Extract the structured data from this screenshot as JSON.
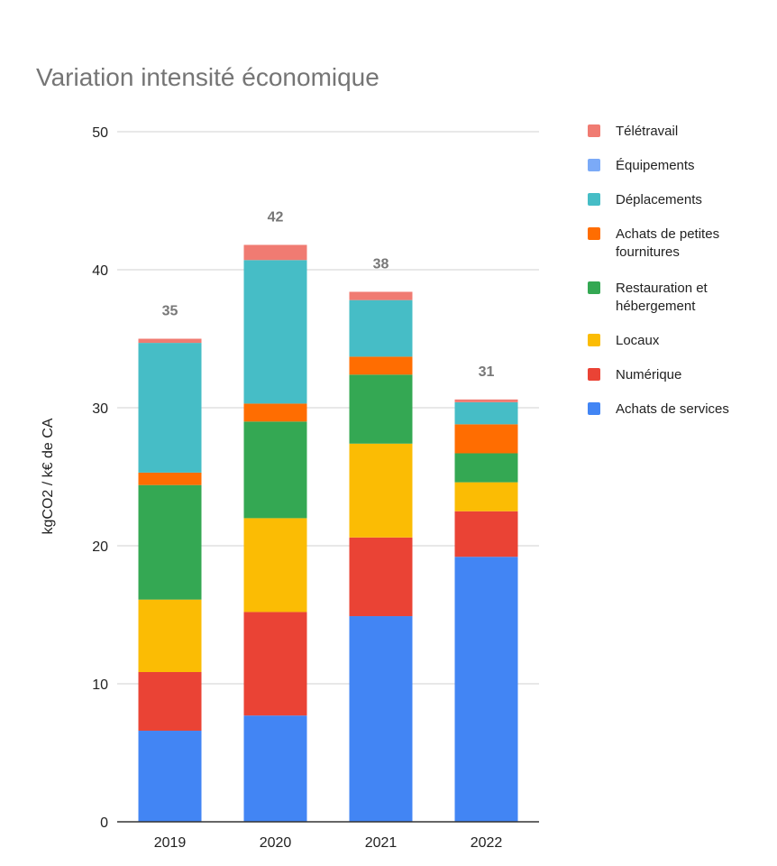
{
  "chart_data": {
    "type": "bar",
    "stacked": true,
    "title": "Variation intensité économique",
    "xlabel": "",
    "ylabel": "kgCO2 / k€ de CA",
    "ylim": [
      0,
      50
    ],
    "yticks": [
      0,
      10,
      20,
      30,
      40,
      50
    ],
    "grid": true,
    "legend_position": "right",
    "categories": [
      "2019",
      "2020",
      "2021",
      "2022"
    ],
    "totals_labels": [
      "35",
      "42",
      "38",
      "31"
    ],
    "series": [
      {
        "name": "Achats de services",
        "color": "#4285f4",
        "values": [
          6.6,
          7.7,
          14.9,
          19.2
        ]
      },
      {
        "name": "Numérique",
        "color": "#ea4335",
        "values": [
          4.25,
          7.5,
          5.7,
          3.3
        ]
      },
      {
        "name": "Locaux",
        "color": "#fbbc04",
        "values": [
          5.25,
          6.8,
          6.8,
          2.1
        ]
      },
      {
        "name": "Restauration et hébergement",
        "color": "#34a853",
        "values": [
          8.3,
          7.0,
          5.0,
          2.1
        ]
      },
      {
        "name": "Achats de petites fournitures",
        "color": "#ff6d01",
        "values": [
          0.9,
          1.3,
          1.3,
          2.1
        ]
      },
      {
        "name": "Déplacements",
        "color": "#46bdc6",
        "values": [
          9.4,
          10.4,
          4.1,
          1.6
        ]
      },
      {
        "name": "Équipements",
        "color": "#7baaf7",
        "values": [
          0,
          0,
          0,
          0
        ]
      },
      {
        "name": "Télétravail",
        "color": "#f07b72",
        "values": [
          0.3,
          1.1,
          0.6,
          0.2
        ]
      }
    ]
  }
}
